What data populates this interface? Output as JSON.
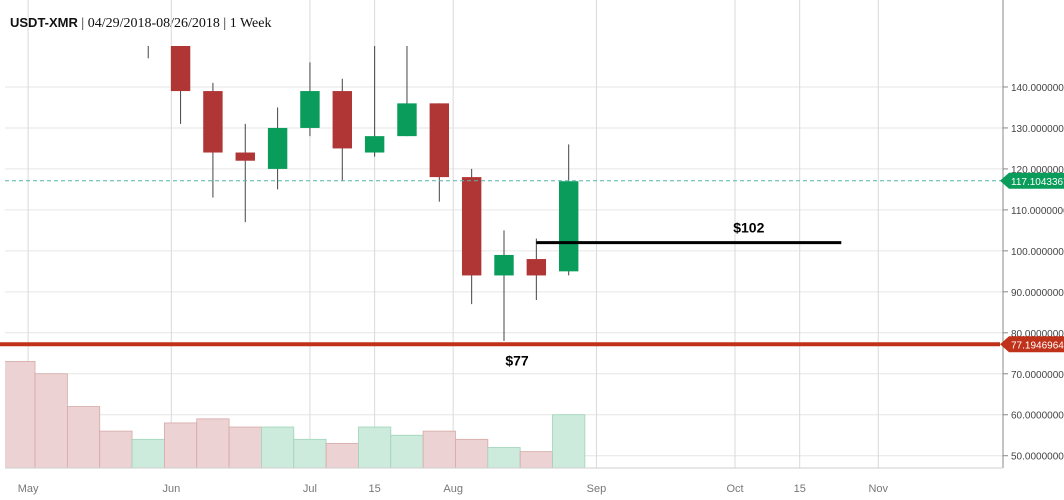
{
  "header": {
    "symbol": "USDT-XMR",
    "details": "| 04/29/2018-08/26/2018 | 1 Week"
  },
  "colors": {
    "up": "#0a9c5a",
    "down": "#b03535",
    "vol_up": "#cdebdc",
    "vol_down": "#ecd2d2",
    "current_price_line": "#56b6a8",
    "support_line": "#c0311a",
    "annotation_line": "#000000",
    "grid": "#e6e6e6"
  },
  "chart_data": {
    "type": "candlestick",
    "title": "USDT-XMR | 04/29/2018-08/26/2018 | 1 Week",
    "ylim": [
      47,
      150
    ],
    "y_ticks": [
      {
        "value": 140,
        "label": "140.0000000"
      },
      {
        "value": 130,
        "label": "130.0000000"
      },
      {
        "value": 120,
        "label": "120.0000000"
      },
      {
        "value": 110,
        "label": "110.0000000"
      },
      {
        "value": 100,
        "label": "100.0000000"
      },
      {
        "value": 90,
        "label": "90.0000000"
      },
      {
        "value": 80,
        "label": "80.0000000"
      },
      {
        "value": 70,
        "label": "70.0000000"
      },
      {
        "value": 60,
        "label": "60.0000000"
      },
      {
        "value": 50,
        "label": "50.0000000"
      }
    ],
    "x_ticks": [
      {
        "date": "2018-05-01",
        "label": "May"
      },
      {
        "date": "2018-06-01",
        "label": "Jun"
      },
      {
        "date": "2018-07-01",
        "label": "Jul"
      },
      {
        "date": "2018-07-15",
        "label": "15"
      },
      {
        "date": "2018-08-01",
        "label": "Aug"
      },
      {
        "date": "2018-09-01",
        "label": "Sep"
      },
      {
        "date": "2018-10-01",
        "label": "Oct"
      },
      {
        "date": "2018-10-15",
        "label": "15"
      },
      {
        "date": "2018-11-01",
        "label": "Nov"
      }
    ],
    "x_range": [
      "2018-04-26",
      "2018-11-28"
    ],
    "candles": [
      {
        "date": "2018-04-29",
        "open": null,
        "high": null,
        "low": null,
        "close": null
      },
      {
        "date": "2018-05-06",
        "open": null,
        "high": null,
        "low": null,
        "close": null
      },
      {
        "date": "2018-05-13",
        "open": null,
        "high": null,
        "low": null,
        "close": null
      },
      {
        "date": "2018-05-20",
        "open": null,
        "high": null,
        "low": null,
        "close": null
      },
      {
        "date": "2018-05-27",
        "open": 153,
        "high": 160,
        "low": 147,
        "close": 152
      },
      {
        "date": "2018-06-03",
        "open": 150,
        "high": 155,
        "low": 131,
        "close": 139
      },
      {
        "date": "2018-06-10",
        "open": 139,
        "high": 141,
        "low": 113,
        "close": 124
      },
      {
        "date": "2018-06-17",
        "open": 124,
        "high": 131,
        "low": 107,
        "close": 122
      },
      {
        "date": "2018-06-24",
        "open": 120,
        "high": 135,
        "low": 115,
        "close": 130
      },
      {
        "date": "2018-07-01",
        "open": 130,
        "high": 146,
        "low": 128,
        "close": 139
      },
      {
        "date": "2018-07-08",
        "open": 139,
        "high": 142,
        "low": 117,
        "close": 125
      },
      {
        "date": "2018-07-15",
        "open": 124,
        "high": 150,
        "low": 123,
        "close": 128
      },
      {
        "date": "2018-07-22",
        "open": 128,
        "high": 150,
        "low": 128,
        "close": 136
      },
      {
        "date": "2018-07-29",
        "open": 136,
        "high": 136,
        "low": 112,
        "close": 118
      },
      {
        "date": "2018-08-05",
        "open": 118,
        "high": 120,
        "low": 87,
        "close": 94
      },
      {
        "date": "2018-08-12",
        "open": 94,
        "high": 105,
        "low": 78,
        "close": 99
      },
      {
        "date": "2018-08-19",
        "open": 98,
        "high": 103,
        "low": 88,
        "close": 94
      },
      {
        "date": "2018-08-26",
        "open": 95,
        "high": 126,
        "low": 94,
        "close": 117
      }
    ],
    "volumes": [
      {
        "date": "2018-04-29",
        "value": 73,
        "dir": "down"
      },
      {
        "date": "2018-05-06",
        "value": 70,
        "dir": "down"
      },
      {
        "date": "2018-05-13",
        "value": 62,
        "dir": "down"
      },
      {
        "date": "2018-05-20",
        "value": 56,
        "dir": "down"
      },
      {
        "date": "2018-05-27",
        "value": 54,
        "dir": "up"
      },
      {
        "date": "2018-06-03",
        "value": 58,
        "dir": "down"
      },
      {
        "date": "2018-06-10",
        "value": 59,
        "dir": "down"
      },
      {
        "date": "2018-06-17",
        "value": 57,
        "dir": "down"
      },
      {
        "date": "2018-06-24",
        "value": 57,
        "dir": "up"
      },
      {
        "date": "2018-07-01",
        "value": 54,
        "dir": "up"
      },
      {
        "date": "2018-07-08",
        "value": 53,
        "dir": "down"
      },
      {
        "date": "2018-07-15",
        "value": 57,
        "dir": "up"
      },
      {
        "date": "2018-07-22",
        "value": 55,
        "dir": "up"
      },
      {
        "date": "2018-07-29",
        "value": 56,
        "dir": "down"
      },
      {
        "date": "2018-08-05",
        "value": 54,
        "dir": "down"
      },
      {
        "date": "2018-08-12",
        "value": 52,
        "dir": "up"
      },
      {
        "date": "2018-08-19",
        "value": 51,
        "dir": "down"
      },
      {
        "date": "2018-08-26",
        "value": 60,
        "dir": "up"
      }
    ],
    "current_price": {
      "value": 117.1043367,
      "label": "117.1043367"
    },
    "support_line": {
      "value": 77.1946964,
      "label": "77.1946964",
      "annotation": "$77"
    },
    "target_line": {
      "value": 102,
      "label": "$102",
      "from": "2018-08-19",
      "to": "2018-10-24"
    }
  }
}
